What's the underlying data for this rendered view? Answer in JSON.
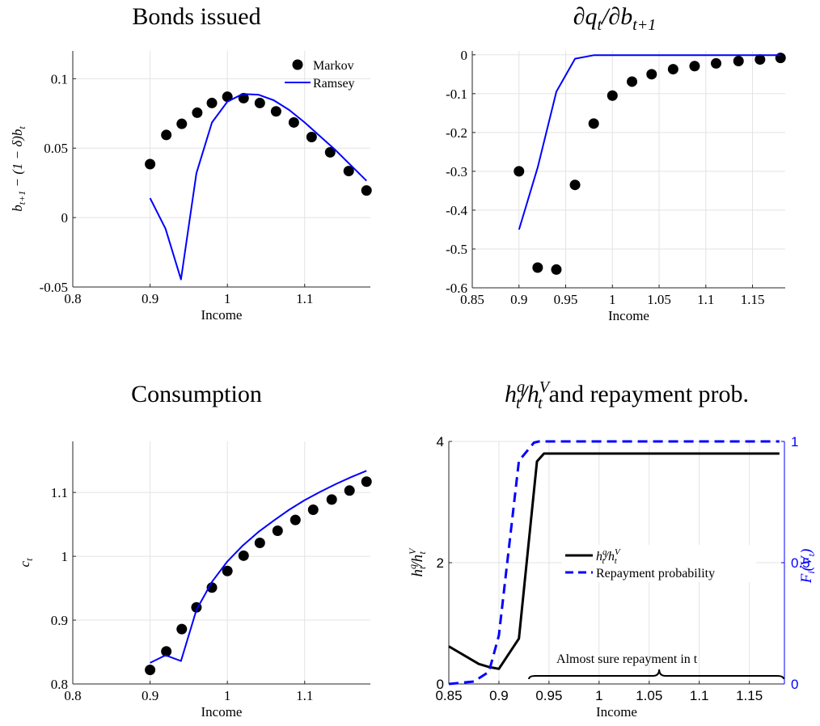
{
  "chart_data": [
    {
      "type": "scatter",
      "title": "Bonds issued",
      "xlabel": "Income",
      "ylabel": "b_{t+1} − (1 − δ)b_t",
      "xlim": [
        0.8,
        1.185
      ],
      "ylim": [
        -0.05,
        0.12
      ],
      "xticks": [
        "0.8",
        "0.9",
        "1",
        "1.1"
      ],
      "yticks": [
        "-0.05",
        "0",
        "0.05",
        "0.1"
      ],
      "grid": true,
      "legend_position": "top-right",
      "series": [
        {
          "name": "Markov",
          "style": "markers",
          "x": [
            0.9,
            0.921,
            0.941,
            0.961,
            0.98,
            1.0,
            1.021,
            1.042,
            1.063,
            1.086,
            1.109,
            1.133,
            1.157,
            1.18
          ],
          "y": [
            0.0385,
            0.0595,
            0.0675,
            0.0755,
            0.0825,
            0.087,
            0.086,
            0.0825,
            0.0765,
            0.0685,
            0.058,
            0.047,
            0.0335,
            0.0195
          ]
        },
        {
          "name": "Ramsey",
          "style": "line",
          "color": "#0000ff",
          "x": [
            0.9,
            0.92,
            0.94,
            0.96,
            0.98,
            1.0,
            1.02,
            1.04,
            1.06,
            1.08,
            1.1,
            1.12,
            1.14,
            1.16,
            1.18
          ],
          "y": [
            0.014,
            -0.008,
            -0.0445,
            0.032,
            0.0685,
            0.0835,
            0.089,
            0.0885,
            0.0845,
            0.0775,
            0.0685,
            0.0585,
            0.0485,
            0.0375,
            0.0265
          ]
        }
      ]
    },
    {
      "type": "scatter",
      "title": "∂q_t/∂b_{t+1}",
      "xlabel": "Income",
      "ylabel": "",
      "xlim": [
        0.85,
        1.185
      ],
      "ylim": [
        -0.6,
        0.01
      ],
      "xticks": [
        "0.85",
        "0.9",
        "0.95",
        "1",
        "1.05",
        "1.1",
        "1.15"
      ],
      "yticks": [
        "-0.6",
        "-0.5",
        "-0.4",
        "-0.3",
        "-0.2",
        "-0.1",
        "0"
      ],
      "grid": true,
      "series": [
        {
          "style": "markers",
          "x": [
            0.9,
            0.92,
            0.94,
            0.96,
            0.98,
            1.0,
            1.021,
            1.042,
            1.065,
            1.088,
            1.111,
            1.135,
            1.158,
            1.18
          ],
          "y": [
            -0.3,
            -0.548,
            -0.553,
            -0.335,
            -0.177,
            -0.105,
            -0.069,
            -0.05,
            -0.037,
            -0.029,
            -0.022,
            -0.016,
            -0.012,
            -0.008
          ]
        },
        {
          "style": "line",
          "color": "#0000ff",
          "x": [
            0.9,
            0.92,
            0.94,
            0.96,
            0.98,
            1.0,
            1.05,
            1.1,
            1.15,
            1.18
          ],
          "y": [
            -0.45,
            -0.29,
            -0.095,
            -0.01,
            -0.001,
            -0.001,
            -0.001,
            -0.001,
            -0.001,
            -0.001
          ]
        }
      ]
    },
    {
      "type": "scatter",
      "title": "Consumption",
      "xlabel": "Income",
      "ylabel": "c_t",
      "xlim": [
        0.8,
        1.185
      ],
      "ylim": [
        0.8,
        1.18
      ],
      "xticks": [
        "0.8",
        "0.9",
        "1",
        "1.1"
      ],
      "yticks": [
        "0.8",
        "0.9",
        "1",
        "1.1"
      ],
      "grid": true,
      "series": [
        {
          "style": "markers",
          "x": [
            0.9,
            0.921,
            0.941,
            0.96,
            0.98,
            1.0,
            1.021,
            1.042,
            1.065,
            1.088,
            1.111,
            1.135,
            1.158,
            1.18
          ],
          "y": [
            0.822,
            0.851,
            0.886,
            0.92,
            0.951,
            0.977,
            1.001,
            1.021,
            1.04,
            1.057,
            1.073,
            1.089,
            1.103,
            1.117
          ]
        },
        {
          "style": "line",
          "color": "#0000ff",
          "x": [
            0.9,
            0.92,
            0.94,
            0.96,
            0.98,
            1.0,
            1.02,
            1.04,
            1.06,
            1.08,
            1.1,
            1.12,
            1.14,
            1.16,
            1.18
          ],
          "y": [
            0.833,
            0.845,
            0.836,
            0.916,
            0.96,
            0.992,
            1.017,
            1.038,
            1.056,
            1.073,
            1.088,
            1.101,
            1.113,
            1.124,
            1.134
          ]
        }
      ]
    },
    {
      "type": "line",
      "title": "h_t^q/h_t^V and repayment prob.",
      "xlabel": "Income",
      "ylabel": "h_t^q/h_t^V",
      "y2label": "F_i(V_t)",
      "xlim": [
        0.85,
        1.185
      ],
      "ylim": [
        0,
        4
      ],
      "y2lim": [
        0,
        1
      ],
      "xticks": [
        "0.85",
        "0.9",
        "0.95",
        "1",
        "1.05",
        "1.1",
        "1.15"
      ],
      "yticks": [
        "0",
        "2",
        "4"
      ],
      "y2ticks": [
        "0",
        "0.5",
        "1"
      ],
      "grid": true,
      "legend_position": "center-right",
      "annotation": "Almost sure repayment in t",
      "series": [
        {
          "name": "h_t^q/h_t^V",
          "axis": "left",
          "color": "#000000",
          "dash": "solid",
          "x": [
            0.85,
            0.88,
            0.89,
            0.9,
            0.92,
            0.938,
            0.945,
            0.96,
            1.0,
            1.05,
            1.1,
            1.15,
            1.18
          ],
          "y": [
            0.62,
            0.33,
            0.28,
            0.25,
            0.75,
            3.67,
            3.8,
            3.8,
            3.8,
            3.8,
            3.8,
            3.8,
            3.8
          ]
        },
        {
          "name": "Repayment probability",
          "axis": "right",
          "color": "#0000ff",
          "dash": "dashed",
          "x": [
            0.85,
            0.875,
            0.89,
            0.9,
            0.92,
            0.935,
            0.94,
            0.96,
            1.0,
            1.05,
            1.1,
            1.15,
            1.18
          ],
          "y": [
            0.0,
            0.01,
            0.05,
            0.2,
            0.92,
            0.995,
            1.0,
            1.0,
            1.0,
            1.0,
            1.0,
            1.0,
            1.0
          ]
        }
      ]
    }
  ]
}
